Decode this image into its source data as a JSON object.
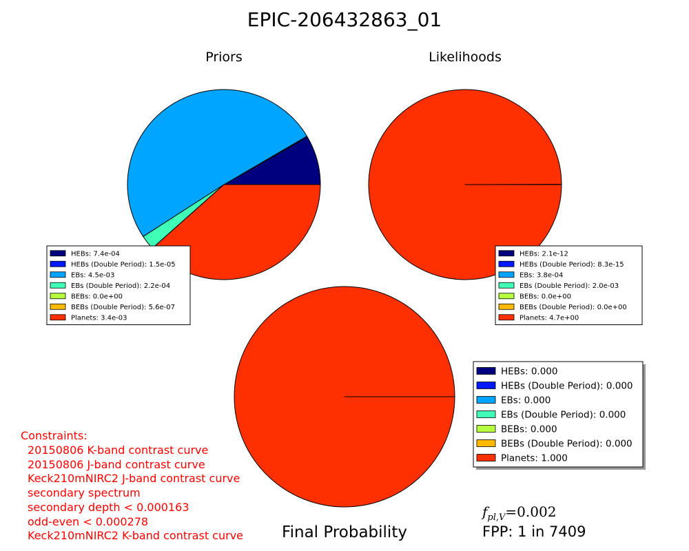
{
  "title": "EPIC-206432863_01",
  "colors": {
    "HEBs": "#00007f",
    "HEBs (Double Period)": "#0019ff",
    "EBs": "#00a5ff",
    "EBs (Double Period)": "#40ffb6",
    "BEBs": "#b6ff40",
    "BEBs (Double Period)": "#ffb900",
    "Planets": "#ff3000"
  },
  "chart_data": [
    {
      "type": "pie",
      "title": "Priors",
      "labels": [
        "HEBs",
        "HEBs (Double Period)",
        "EBs",
        "EBs (Double Period)",
        "BEBs",
        "BEBs (Double Period)",
        "Planets"
      ],
      "values": [
        0.00074,
        1.5e-05,
        0.0045,
        0.00022,
        0.0,
        5.6e-07,
        0.0034
      ],
      "legend": [
        "HEBs: 7.4e-04",
        "HEBs (Double Period): 1.5e-05",
        "EBs: 4.5e-03",
        "EBs (Double Period): 2.2e-04",
        "BEBs: 0.0e+00",
        "BEBs (Double Period): 5.6e-07",
        "Planets: 3.4e-03"
      ]
    },
    {
      "type": "pie",
      "title": "Likelihoods",
      "labels": [
        "HEBs",
        "HEBs (Double Period)",
        "EBs",
        "EBs (Double Period)",
        "BEBs",
        "BEBs (Double Period)",
        "Planets"
      ],
      "values": [
        2.1e-12,
        8.3e-15,
        0.00038,
        0.002,
        0.0,
        0.0,
        4.7
      ],
      "legend": [
        "HEBs: 2.1e-12",
        "HEBs (Double Period): 8.3e-15",
        "EBs: 3.8e-04",
        "EBs (Double Period): 2.0e-03",
        "BEBs: 0.0e+00",
        "BEBs (Double Period): 0.0e+00",
        "Planets: 4.7e+00"
      ]
    },
    {
      "type": "pie",
      "title": "Final Probability",
      "labels": [
        "HEBs",
        "HEBs (Double Period)",
        "EBs",
        "EBs (Double Period)",
        "BEBs",
        "BEBs (Double Period)",
        "Planets"
      ],
      "values": [
        0.0,
        0.0,
        0.0,
        0.0,
        0.0,
        0.0,
        1.0
      ],
      "legend": [
        "HEBs: 0.000",
        "HEBs (Double Period): 0.000",
        "EBs: 0.000",
        "EBs (Double Period): 0.000",
        "BEBs: 0.000",
        "BEBs (Double Period): 0.000",
        "Planets: 1.000"
      ]
    }
  ],
  "constraints": {
    "heading": "Constraints:",
    "items": [
      "20150806 K-band contrast curve",
      "20150806 J-band contrast curve",
      "Keck210mNIRC2 J-band contrast curve",
      "secondary spectrum",
      "secondary depth < 0.000163",
      "odd-even < 0.000278",
      "Keck210mNIRC2 K-band contrast curve"
    ],
    "color": "#ff0000"
  },
  "fpl": {
    "label_f": "f",
    "label_sub": "pl,V",
    "equals": "=0.002"
  },
  "fpp": "FPP: 1 in 7409"
}
